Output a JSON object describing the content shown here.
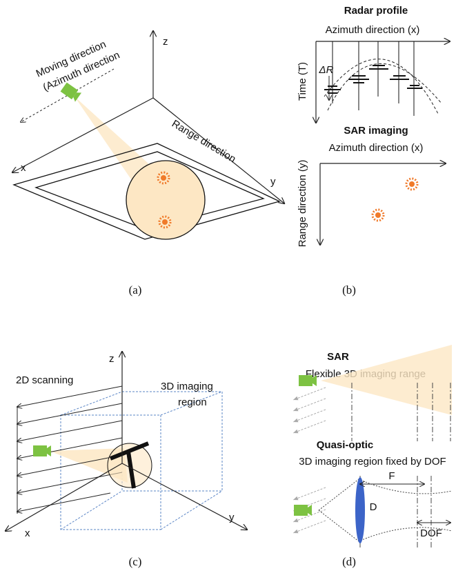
{
  "panel_a": {
    "moving_direction_line1": "Moving direction",
    "moving_direction_line2": "(Azimuth direction",
    "z_axis": "z",
    "x_axis": "x",
    "y_axis": "y",
    "range_direction": "Range direction",
    "caption": "(a)"
  },
  "panel_b": {
    "profile_title": "Radar profile",
    "profile_x_axis": "Azimuth direction (x)",
    "profile_y_axis": "Time (T)",
    "delta_r": "ΔR",
    "imaging_title": "SAR imaging",
    "imaging_x_axis": "Azimuth direction (x)",
    "imaging_y_axis": "Range direction (y)",
    "caption": "(b)"
  },
  "panel_c": {
    "z_axis": "z",
    "scanning": "2D scanning",
    "region_line1": "3D imaging",
    "region_line2": "region",
    "x_axis": "x",
    "y_axis": "y",
    "caption": "(c)"
  },
  "panel_d": {
    "sar_title": "SAR",
    "sar_subtitle": "Flexible 3D imaging range",
    "quasi_title": "Quasi-optic",
    "quasi_subtitle": "3D imaging region fixed by DOF",
    "focal_label": "F",
    "diameter_label": "D",
    "dof_label": "DOF",
    "caption": "(d)"
  }
}
